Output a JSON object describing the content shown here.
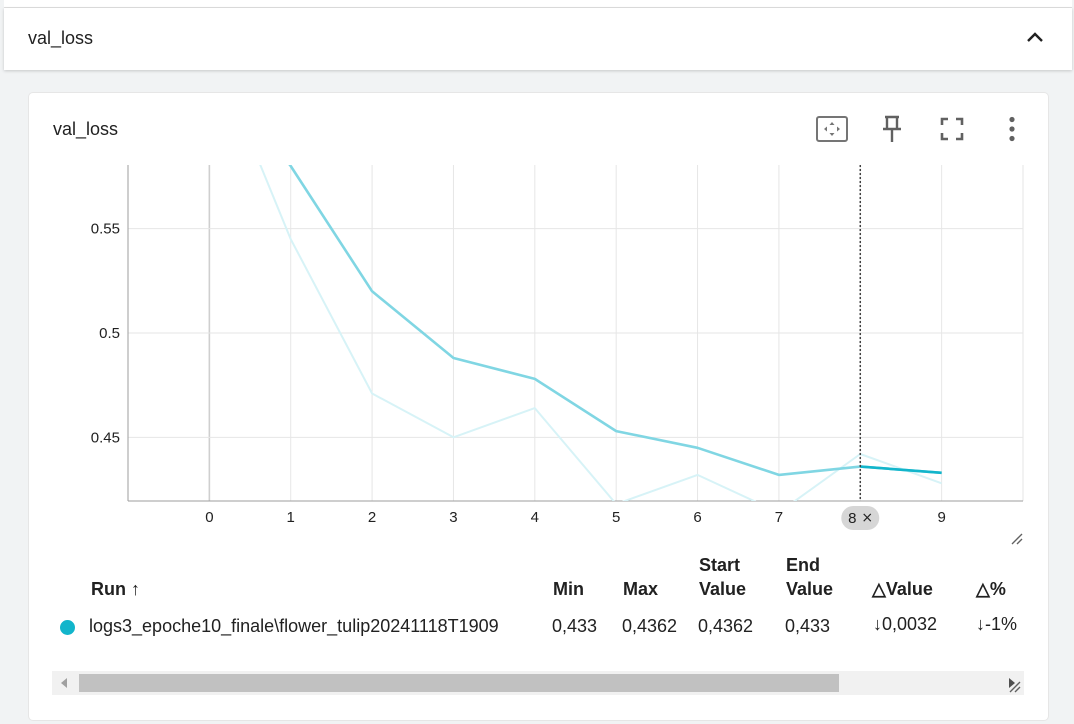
{
  "section": {
    "title": "val_loss"
  },
  "card": {
    "title": "val_loss",
    "tools": [
      {
        "name": "fit-domain-icon"
      },
      {
        "name": "pin-icon"
      },
      {
        "name": "fullscreen-icon"
      },
      {
        "name": "more-vert-icon"
      }
    ]
  },
  "chart_data": {
    "type": "line",
    "title": "",
    "xlabel": "",
    "ylabel": "",
    "x_ticks": [
      0,
      1,
      2,
      3,
      4,
      5,
      6,
      7,
      8,
      9
    ],
    "y_ticks": [
      {
        "value": 0.55,
        "label": "0.55"
      },
      {
        "value": 0.5,
        "label": "0.5"
      },
      {
        "value": 0.45,
        "label": "0.45"
      }
    ],
    "xlim": [
      -1,
      10
    ],
    "ylim": [
      0.4195,
      0.5805
    ],
    "grid": true,
    "series": [
      {
        "name": "logs3_epoche10_finale\\flower_tulip20241118T1909",
        "role": "smoothed",
        "color": "#80d6e3",
        "x": [
          0,
          1,
          2,
          3,
          4,
          5,
          6,
          7,
          8,
          9
        ],
        "y": [
          0.63,
          0.58,
          0.52,
          0.488,
          0.478,
          0.453,
          0.445,
          0.432,
          0.436,
          0.433
        ]
      },
      {
        "name": "logs3_epoche10_finale\\flower_tulip20241118T1909",
        "role": "raw",
        "color": "#d7f3f7",
        "x": [
          0,
          1,
          2,
          3,
          4,
          5,
          6,
          7,
          8,
          9
        ],
        "y": [
          0.64,
          0.545,
          0.471,
          0.45,
          0.464,
          0.418,
          0.432,
          0.414,
          0.442,
          0.428
        ]
      }
    ],
    "hover_step": {
      "x": 8,
      "label": "8",
      "close_glyph": "×"
    }
  },
  "table": {
    "headers": {
      "run": "Run",
      "run_sort": "↑",
      "min": "Min",
      "max": "Max",
      "start_line1": "Start",
      "start_line2": "Value",
      "end_line1": "End",
      "end_line2": "Value",
      "delta_value": "△Value",
      "delta_pct": "△%"
    },
    "rows": [
      {
        "color": "#12b5cb",
        "run": "logs3_epoche10_finale\\flower_tulip20241118T1909",
        "min": "0,433",
        "max": "0,4362",
        "start": "0,4362",
        "end": "0,433",
        "delta_value": "↓0,0032",
        "delta_pct": "↓-1%"
      }
    ]
  }
}
